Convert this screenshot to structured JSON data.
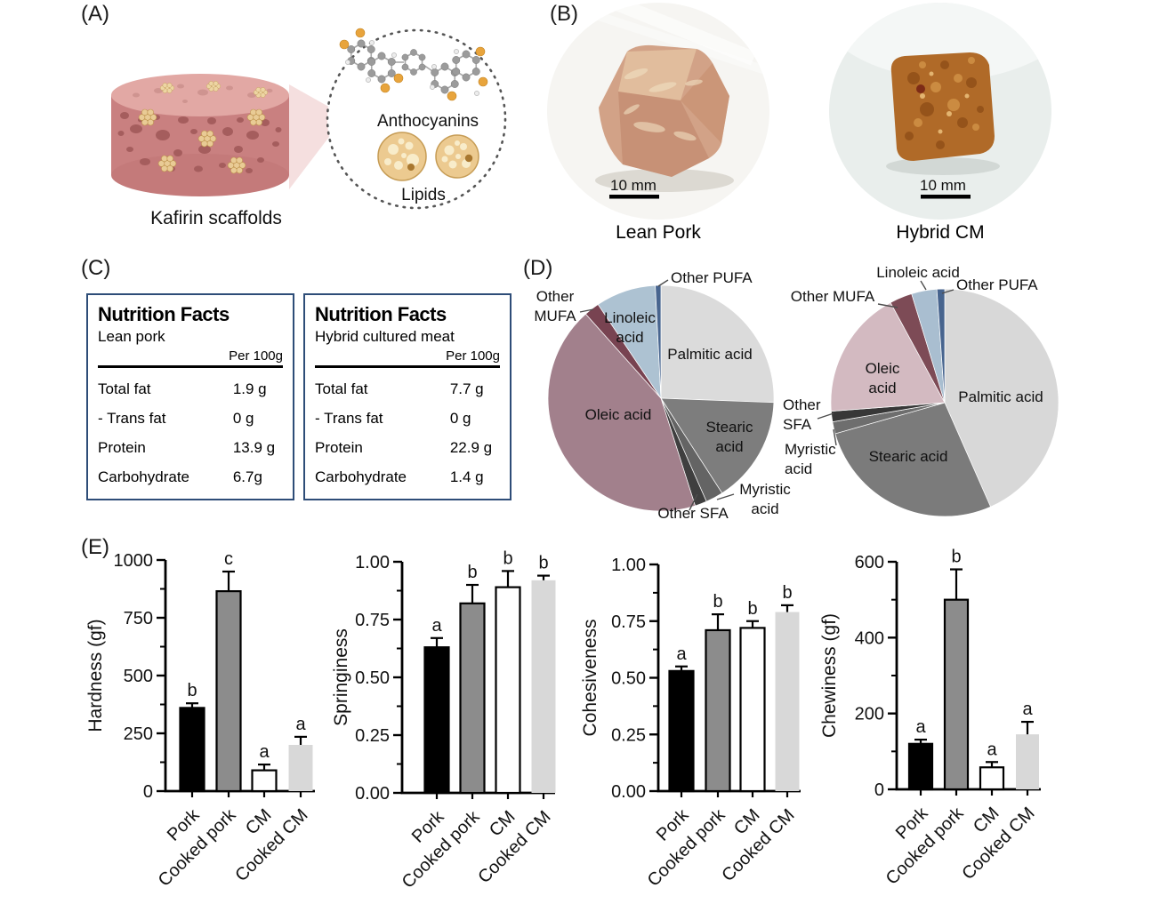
{
  "panels": {
    "a": {
      "label": "(A)",
      "caption": "Kafirin scaffolds",
      "anthocyanins_label": "Anthocyanins",
      "lipids_label": "Lipids"
    },
    "b": {
      "label": "(B)",
      "photos": [
        {
          "caption": "Lean Pork",
          "scale_bar": "10 mm"
        },
        {
          "caption": "Hybrid CM",
          "scale_bar": "10 mm"
        }
      ]
    },
    "c": {
      "label": "(C)",
      "border_color": "#2e4d78",
      "tables": [
        {
          "title": "Nutrition Facts",
          "subtitle": "Lean pork",
          "column_header": "Per 100g",
          "rows": [
            [
              "Total fat",
              "1.9 g"
            ],
            [
              "- Trans fat",
              "0 g"
            ],
            [
              "Protein",
              "13.9 g"
            ],
            [
              "Carbohydrate",
              "6.7g"
            ]
          ]
        },
        {
          "title": "Nutrition Facts",
          "subtitle": "Hybrid cultured meat",
          "column_header": "Per 100g",
          "rows": [
            [
              "Total fat",
              "7.7 g"
            ],
            [
              "- Trans fat",
              "0 g"
            ],
            [
              "Protein",
              "22.9 g"
            ],
            [
              "Carbohydrate",
              "1.4 g"
            ]
          ]
        }
      ]
    },
    "d": {
      "label": "(D)"
    },
    "e": {
      "label": "(E)"
    }
  },
  "chart_data": [
    {
      "type": "pie",
      "slices": [
        {
          "label": "Palmitic acid",
          "value": 25.6,
          "color": "#dbdbdb"
        },
        {
          "label": "Stearic acid",
          "value": 15.3,
          "color": "#7d7d7d"
        },
        {
          "label": "Myristic acid",
          "value": 2.5,
          "color": "#646464"
        },
        {
          "label": "Other SFA",
          "value": 1.7,
          "color": "#3f3f3f"
        },
        {
          "label": "Oleic acid",
          "value": 43.3,
          "color": "#a2808c"
        },
        {
          "label": "Other MUFA",
          "value": 2.2,
          "color": "#784351"
        },
        {
          "label": "Linoleic acid",
          "value": 8.6,
          "color": "#adc2d2"
        },
        {
          "label": "Other PUFA",
          "value": 0.8,
          "color": "#48658f"
        }
      ]
    },
    {
      "type": "pie",
      "slices": [
        {
          "label": "Palmitic acid",
          "value": 43.4,
          "color": "#d8d8d8"
        },
        {
          "label": "Stearic acid",
          "value": 27.2,
          "color": "#7b7b7b"
        },
        {
          "label": "Myristic acid",
          "value": 1.7,
          "color": "#6e6e6e"
        },
        {
          "label": "Other SFA",
          "value": 1.5,
          "color": "#373737"
        },
        {
          "label": "Oleic acid",
          "value": 18.3,
          "color": "#d3bac1"
        },
        {
          "label": "Other MUFA",
          "value": 3.2,
          "color": "#7d4b56"
        },
        {
          "label": "Linoleic acid",
          "value": 3.6,
          "color": "#a9bed0"
        },
        {
          "label": "Other PUFA",
          "value": 1.1,
          "color": "#47648e"
        }
      ]
    },
    {
      "type": "bar",
      "ylabel": "Hardness (gf)",
      "categories": [
        "Pork",
        "Cooked pork",
        "CM",
        "Cooked CM"
      ],
      "values": [
        360,
        865,
        90,
        200
      ],
      "errors": [
        20,
        85,
        25,
        35
      ],
      "sig_letters": [
        "b",
        "c",
        "a",
        "a"
      ],
      "ylim": [
        0,
        1000
      ],
      "yticks": [
        "0",
        "250",
        "500",
        "750",
        "1000"
      ],
      "bar_colors": [
        "#000000",
        "#8c8c8c",
        "#ffffff",
        "#d8d8d8"
      ]
    },
    {
      "type": "bar",
      "ylabel": "Springiness",
      "categories": [
        "Pork",
        "Cooked pork",
        "CM",
        "Cooked CM"
      ],
      "values": [
        0.63,
        0.82,
        0.89,
        0.92
      ],
      "errors": [
        0.04,
        0.08,
        0.07,
        0.02
      ],
      "sig_letters": [
        "a",
        "b",
        "b",
        "b"
      ],
      "ylim": [
        0,
        1.0
      ],
      "yticks": [
        "0.00",
        "0.25",
        "0.50",
        "0.75",
        "1.00"
      ],
      "bar_colors": [
        "#000000",
        "#8c8c8c",
        "#ffffff",
        "#d8d8d8"
      ]
    },
    {
      "type": "bar",
      "ylabel": "Cohesiveness",
      "categories": [
        "Pork",
        "Cooked pork",
        "CM",
        "Cooked CM"
      ],
      "values": [
        0.53,
        0.71,
        0.72,
        0.79
      ],
      "errors": [
        0.02,
        0.07,
        0.03,
        0.03
      ],
      "sig_letters": [
        "a",
        "b",
        "b",
        "b"
      ],
      "ylim": [
        0,
        1.0
      ],
      "yticks": [
        "0.00",
        "0.25",
        "0.50",
        "0.75",
        "1.00"
      ],
      "bar_colors": [
        "#000000",
        "#8c8c8c",
        "#ffffff",
        "#d8d8d8"
      ]
    },
    {
      "type": "bar",
      "ylabel": "Chewiness (gf)",
      "categories": [
        "Pork",
        "Cooked pork",
        "CM",
        "Cooked CM"
      ],
      "values": [
        120,
        500,
        58,
        145
      ],
      "errors": [
        11,
        80,
        14,
        33
      ],
      "sig_letters": [
        "a",
        "b",
        "a",
        "a"
      ],
      "ylim": [
        0,
        600
      ],
      "yticks": [
        "0",
        "200",
        "400",
        "600"
      ],
      "bar_colors": [
        "#000000",
        "#8c8c8c",
        "#ffffff",
        "#d8d8d8"
      ]
    }
  ]
}
